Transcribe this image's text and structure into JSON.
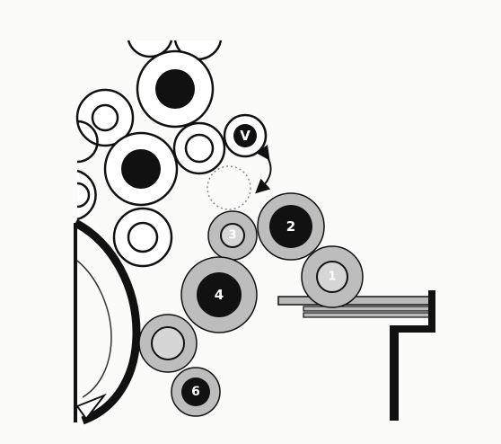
{
  "colors": {
    "background": "#fbfbfa",
    "ink": "#111111",
    "outline_roller": "#ffffff",
    "grey_roller": "#bdbdbd",
    "grey_core": "#d6d6d6",
    "dark_core": "#111111",
    "light_label": "#ffffff",
    "dark_label": "#111111",
    "table": "#b9b9b9"
  },
  "rollers": [
    {
      "id": "roller-1",
      "label": "1",
      "style": "grey-light-core"
    },
    {
      "id": "roller-2",
      "label": "2",
      "style": "grey-dark-core"
    },
    {
      "id": "roller-3",
      "label": "3",
      "style": "grey-light-core"
    },
    {
      "id": "roller-4",
      "label": "4",
      "style": "grey-dark-core"
    },
    {
      "id": "roller-5",
      "label": "",
      "style": "grey-light-core"
    },
    {
      "id": "roller-6",
      "label": "6",
      "style": "grey-dark-core"
    },
    {
      "id": "roller-v",
      "label": "V",
      "style": "outline-dark-core"
    }
  ],
  "ghost_roller": {
    "style": "dotted"
  },
  "arrow": {
    "type": "double-headed-curved"
  },
  "background_rollers": {
    "count": 9,
    "style": "outline"
  }
}
